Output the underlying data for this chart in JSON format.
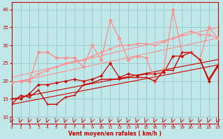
{
  "background_color": "#c0e8e8",
  "grid_color": "#98c8c8",
  "xlabel": "Vent moyen/en rafales ( km/h )",
  "xlim": [
    0,
    23
  ],
  "ylim": [
    8,
    42
  ],
  "yticks": [
    10,
    15,
    20,
    25,
    30,
    35,
    40
  ],
  "xticks": [
    0,
    1,
    2,
    3,
    4,
    5,
    6,
    7,
    8,
    9,
    10,
    11,
    12,
    13,
    14,
    15,
    16,
    17,
    18,
    19,
    20,
    21,
    22,
    23
  ],
  "series": [
    {
      "label": "dark_line1",
      "x": [
        0,
        1,
        2,
        3,
        4,
        5,
        6,
        7,
        8,
        9,
        10,
        11,
        12,
        13,
        14,
        15,
        16,
        17,
        18,
        19,
        20,
        21,
        22,
        23
      ],
      "y": [
        13.5,
        16,
        15.5,
        17.5,
        13.5,
        13.5,
        15.5,
        16,
        19,
        19.5,
        20.5,
        20.5,
        20.5,
        21,
        21,
        21,
        20,
        23,
        23,
        28,
        28,
        26,
        20.5,
        24.5
      ],
      "color": "#cc0000",
      "linewidth": 1.0,
      "marker": "+",
      "markersize": 3,
      "alpha": 1.0,
      "linestyle": "-",
      "zorder": 5
    },
    {
      "label": "dark_line2_smooth",
      "x": [
        0,
        23
      ],
      "y": [
        13.5,
        24.5
      ],
      "color": "#cc0000",
      "linewidth": 0.8,
      "marker": null,
      "markersize": 0,
      "alpha": 1.0,
      "linestyle": "-",
      "zorder": 3
    },
    {
      "label": "dark_line3_smooth",
      "x": [
        0,
        23
      ],
      "y": [
        15.0,
        26.0
      ],
      "color": "#cc0000",
      "linewidth": 0.8,
      "marker": null,
      "markersize": 0,
      "alpha": 1.0,
      "linestyle": "-",
      "zorder": 3
    },
    {
      "label": "dark_zigzag",
      "x": [
        0,
        1,
        2,
        3,
        4,
        5,
        6,
        7,
        8,
        9,
        10,
        11,
        12,
        13,
        14,
        15,
        16,
        17,
        18,
        19,
        20,
        21,
        22,
        23
      ],
      "y": [
        15,
        15,
        16.5,
        19,
        19,
        19.5,
        20,
        20.5,
        20,
        20.5,
        21.5,
        25,
        21,
        22,
        21.5,
        22,
        22,
        22.5,
        27,
        27,
        28,
        26,
        20,
        24
      ],
      "color": "#cc0000",
      "linewidth": 0.9,
      "marker": "D",
      "markersize": 2,
      "alpha": 1.0,
      "linestyle": "-",
      "zorder": 4
    },
    {
      "label": "light_line1",
      "x": [
        0,
        1,
        2,
        3,
        4,
        5,
        6,
        7,
        8,
        9,
        10,
        11,
        12,
        13,
        14,
        15,
        16,
        17,
        18,
        19,
        20,
        21,
        22,
        23
      ],
      "y": [
        19.5,
        20,
        20,
        28,
        28,
        26.5,
        26.5,
        26.5,
        24,
        30,
        26,
        37,
        32,
        26,
        27,
        26.5,
        20,
        23.5,
        40,
        28,
        28,
        26,
        35,
        32
      ],
      "color": "#ff9090",
      "linewidth": 1.0,
      "marker": "D",
      "markersize": 2.5,
      "alpha": 1.0,
      "linestyle": "-",
      "zorder": 4
    },
    {
      "label": "light_smooth1",
      "x": [
        0,
        23
      ],
      "y": [
        19.5,
        32
      ],
      "color": "#ff9090",
      "linewidth": 0.8,
      "marker": null,
      "markersize": 0,
      "alpha": 1.0,
      "linestyle": "-",
      "zorder": 2
    },
    {
      "label": "light_smooth2",
      "x": [
        0,
        23
      ],
      "y": [
        21,
        35
      ],
      "color": "#ff9090",
      "linewidth": 0.8,
      "marker": null,
      "markersize": 0,
      "alpha": 1.0,
      "linestyle": "-",
      "zorder": 2
    },
    {
      "label": "light_line2",
      "x": [
        0,
        1,
        2,
        3,
        4,
        5,
        6,
        7,
        8,
        9,
        10,
        11,
        12,
        13,
        14,
        15,
        16,
        17,
        18,
        19,
        20,
        21,
        22,
        23
      ],
      "y": [
        19.5,
        20,
        20.5,
        22,
        23,
        24,
        25,
        25.5,
        26,
        27,
        28,
        29,
        30,
        30,
        30.5,
        30.5,
        30,
        31,
        32,
        33,
        34,
        33,
        33,
        32
      ],
      "color": "#ff9090",
      "linewidth": 0.9,
      "marker": "D",
      "markersize": 2,
      "alpha": 1.0,
      "linestyle": "-",
      "zorder": 3
    }
  ]
}
